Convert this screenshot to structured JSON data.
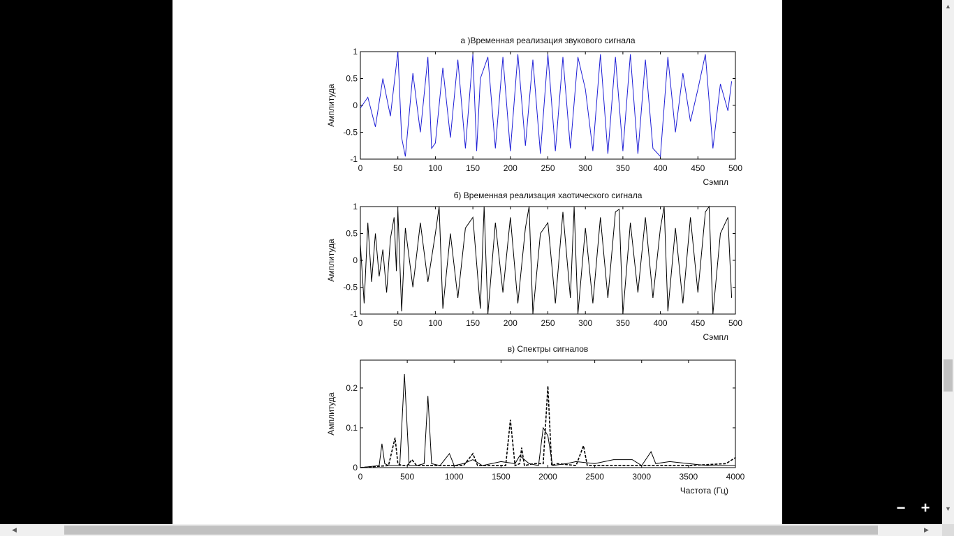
{
  "zoom": {
    "minus_label": "−",
    "plus_label": "+"
  },
  "chart_data": [
    {
      "type": "line",
      "title": "а )Временная реализация звукового сигнала",
      "xlabel": "Сэмпл",
      "ylabel": "Амплитуда",
      "xlim": [
        0,
        500
      ],
      "ylim": [
        -1,
        1
      ],
      "xticks": [
        0,
        50,
        100,
        150,
        200,
        250,
        300,
        350,
        400,
        450,
        500
      ],
      "yticks": [
        -1,
        -0.5,
        0,
        0.5,
        1
      ],
      "color": "#1f1fd6",
      "series": [
        {
          "x": [
            0,
            10,
            20,
            30,
            40,
            50,
            55,
            60,
            70,
            80,
            90,
            95,
            100,
            110,
            120,
            130,
            140,
            150,
            155,
            160,
            170,
            180,
            190,
            200,
            210,
            220,
            230,
            240,
            250,
            260,
            270,
            280,
            290,
            300,
            310,
            320,
            330,
            340,
            350,
            360,
            370,
            380,
            390,
            400,
            410,
            420,
            430,
            440,
            450,
            460,
            470,
            480,
            490,
            495
          ],
          "y": [
            -0.05,
            0.15,
            -0.4,
            0.5,
            -0.2,
            1.0,
            -0.6,
            -0.95,
            0.6,
            -0.5,
            0.9,
            -0.8,
            -0.7,
            0.7,
            -0.6,
            0.85,
            -0.8,
            0.95,
            -0.85,
            0.5,
            0.9,
            -0.8,
            0.9,
            -0.85,
            0.95,
            -0.75,
            0.85,
            -0.9,
            0.95,
            -0.85,
            0.9,
            -0.8,
            0.9,
            0.3,
            -0.85,
            0.95,
            -0.9,
            0.9,
            -0.85,
            0.95,
            -0.9,
            0.85,
            -0.8,
            -0.95,
            0.9,
            -0.5,
            0.6,
            -0.3,
            0.3,
            0.95,
            -0.8,
            0.4,
            -0.1,
            0.45
          ]
        }
      ]
    },
    {
      "type": "line",
      "title": "б) Временная реализация хаотического сигнала",
      "xlabel": "Сэмпл",
      "ylabel": "Амплитуда",
      "xlim": [
        0,
        500
      ],
      "ylim": [
        -1,
        1
      ],
      "xticks": [
        0,
        50,
        100,
        150,
        200,
        250,
        300,
        350,
        400,
        450,
        500
      ],
      "yticks": [
        -1,
        -0.5,
        0,
        0.5,
        1
      ],
      "color": "#000000",
      "series": [
        {
          "x": [
            0,
            5,
            10,
            15,
            20,
            25,
            30,
            35,
            40,
            45,
            48,
            50,
            55,
            60,
            70,
            80,
            90,
            100,
            105,
            110,
            120,
            130,
            140,
            150,
            160,
            165,
            170,
            180,
            190,
            200,
            210,
            220,
            225,
            230,
            240,
            250,
            260,
            270,
            280,
            285,
            290,
            300,
            310,
            320,
            330,
            340,
            345,
            350,
            360,
            370,
            380,
            390,
            400,
            405,
            410,
            420,
            430,
            440,
            450,
            460,
            465,
            470,
            480,
            490,
            495
          ],
          "y": [
            0.3,
            -0.8,
            0.7,
            -0.4,
            0.5,
            -0.3,
            0.2,
            -0.6,
            0.4,
            0.8,
            -0.2,
            0.95,
            -0.95,
            0.6,
            -0.5,
            0.7,
            -0.4,
            0.5,
            1.0,
            -0.9,
            0.5,
            -0.7,
            0.6,
            0.8,
            -0.9,
            1.0,
            -1.0,
            0.7,
            -0.6,
            0.8,
            -0.8,
            0.6,
            1.0,
            -1.0,
            0.5,
            0.7,
            -0.8,
            0.9,
            -0.7,
            1.0,
            -1.0,
            0.6,
            -0.8,
            0.8,
            -0.7,
            0.9,
            0.95,
            -1.0,
            0.7,
            -0.6,
            0.8,
            -0.7,
            0.6,
            1.0,
            -0.95,
            0.6,
            -0.8,
            0.8,
            -0.6,
            0.9,
            1.0,
            -1.0,
            0.5,
            0.8,
            -0.7
          ]
        }
      ]
    },
    {
      "type": "line",
      "title": "в) Спектры сигналов",
      "xlabel": "Частота (Гц)",
      "ylabel": "Амплитуда",
      "xlim": [
        0,
        4000
      ],
      "ylim": [
        0,
        0.27
      ],
      "xticks": [
        0,
        500,
        1000,
        1500,
        2000,
        2500,
        3000,
        3500,
        4000
      ],
      "yticks": [
        0,
        0.1,
        0.2
      ],
      "ytick_labels": [
        "0",
        "0.1",
        "0.2"
      ],
      "series": [
        {
          "style": "solid",
          "x": [
            0,
            200,
            230,
            260,
            300,
            420,
            470,
            520,
            600,
            680,
            720,
            760,
            850,
            950,
            1000,
            1100,
            1200,
            1300,
            1500,
            1650,
            1700,
            1800,
            1900,
            1950,
            2000,
            2050,
            2200,
            2300,
            2500,
            2700,
            2900,
            3000,
            3100,
            3150,
            3300,
            3500,
            3700,
            4000
          ],
          "y": [
            0.0,
            0.005,
            0.06,
            0.01,
            0.005,
            0.005,
            0.235,
            0.005,
            0.005,
            0.01,
            0.18,
            0.01,
            0.005,
            0.035,
            0.005,
            0.01,
            0.02,
            0.005,
            0.015,
            0.01,
            0.03,
            0.01,
            0.005,
            0.1,
            0.08,
            0.005,
            0.01,
            0.015,
            0.01,
            0.02,
            0.02,
            0.005,
            0.04,
            0.01,
            0.015,
            0.01,
            0.005,
            0.005
          ]
        },
        {
          "style": "dashed",
          "x": [
            0,
            300,
            370,
            400,
            440,
            500,
            550,
            600,
            800,
            1100,
            1200,
            1250,
            1400,
            1550,
            1600,
            1650,
            1700,
            1720,
            1750,
            1850,
            1950,
            2000,
            2040,
            2100,
            2300,
            2380,
            2420,
            2500,
            2800,
            3000,
            3500,
            3900,
            4000
          ],
          "y": [
            0.0,
            0.005,
            0.075,
            0.01,
            0.005,
            0.005,
            0.02,
            0.005,
            0.005,
            0.005,
            0.035,
            0.005,
            0.005,
            0.005,
            0.12,
            0.005,
            0.01,
            0.05,
            0.005,
            0.01,
            0.01,
            0.205,
            0.005,
            0.01,
            0.005,
            0.055,
            0.005,
            0.005,
            0.005,
            0.005,
            0.005,
            0.01,
            0.025
          ]
        }
      ]
    }
  ]
}
